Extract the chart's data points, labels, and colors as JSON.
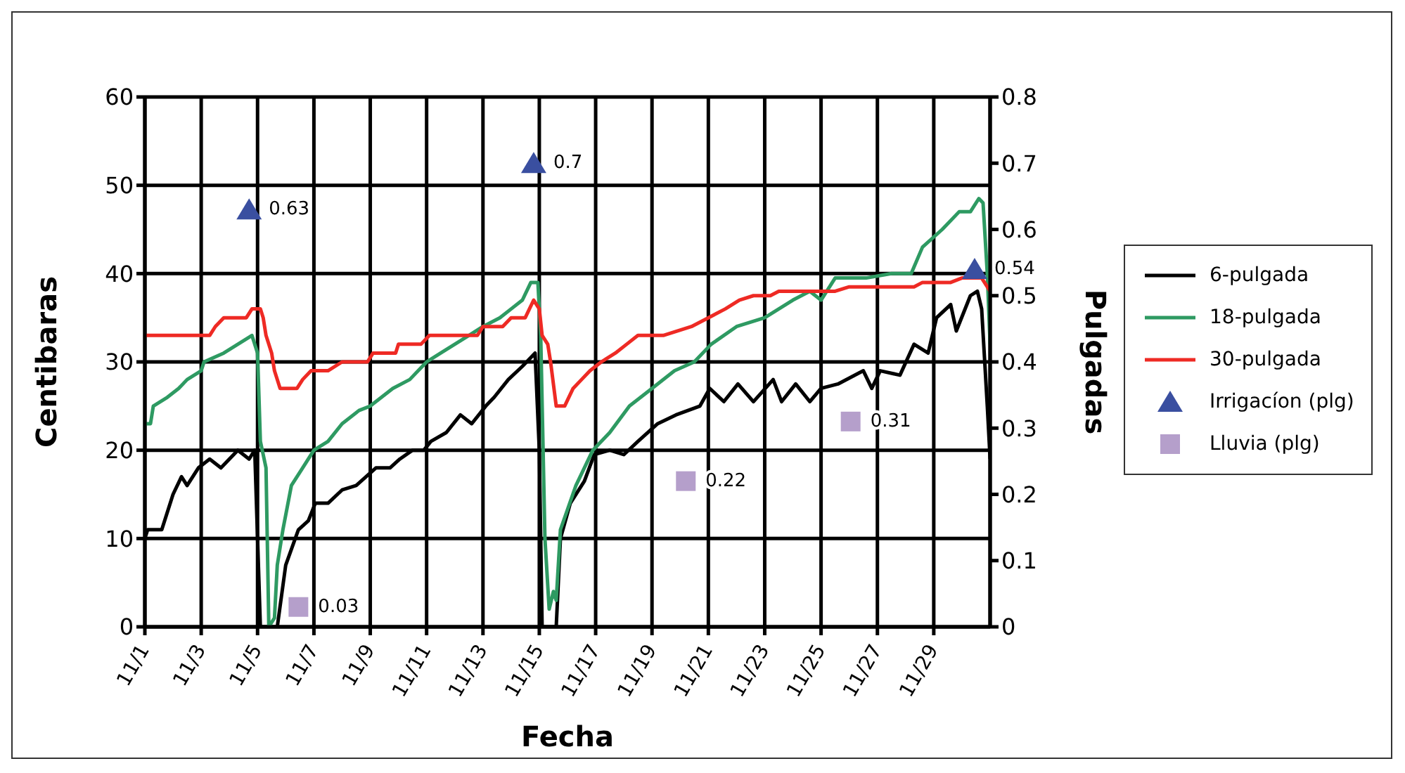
{
  "chart_data": {
    "type": "line",
    "xlabel": "Fecha",
    "ylabel": "Centibaras",
    "y2label": "Pulgadas",
    "xlim": [
      "--11-01",
      "--12-01"
    ],
    "xticks": [
      {
        "value": "--11-01",
        "label": "11/1"
      },
      {
        "value": "--11-03",
        "label": "11/3"
      },
      {
        "value": "--11-05",
        "label": "11/5"
      },
      {
        "value": "--11-07",
        "label": "11/7"
      },
      {
        "value": "--11-09",
        "label": "11/9"
      },
      {
        "value": "--11-11",
        "label": "11/11"
      },
      {
        "value": "--11-13",
        "label": "11/13"
      },
      {
        "value": "--11-15",
        "label": "11/15"
      },
      {
        "value": "--11-17",
        "label": "11/17"
      },
      {
        "value": "--11-19",
        "label": "11/19"
      },
      {
        "value": "--11-21",
        "label": "11/21"
      },
      {
        "value": "--11-23",
        "label": "11/23"
      },
      {
        "value": "--11-25",
        "label": "11/25"
      },
      {
        "value": "--11-27",
        "label": "11/27"
      },
      {
        "value": "--11-29",
        "label": "11/29"
      }
    ],
    "ylim": [
      0,
      60
    ],
    "yticks": [
      0,
      10,
      20,
      30,
      40,
      50,
      60
    ],
    "y2lim": [
      0,
      0.8
    ],
    "y2ticks": [
      0,
      0.1,
      0.2,
      0.3,
      0.4,
      0.5,
      0.6,
      0.7,
      0.8
    ],
    "grid": true,
    "legend": "right",
    "series": [
      {
        "name": "6-pulgada",
        "color": "#000000",
        "x": [
          "--11-01",
          "--11-01T02:24",
          "--11-01T14:24",
          "--11-02",
          "--11-02T07:12",
          "--11-02T12:00",
          "--11-02T21:36",
          "--11-03T07:12",
          "--11-03T16:48",
          "--11-04",
          "--11-04T07:12",
          "--11-04T16:48",
          "--11-04T21:36",
          "--11-05T02:24",
          "--11-05T04:48",
          "--11-05T16:48",
          "--11-06",
          "--11-06T10:48",
          "--11-06T19:12",
          "--11-07T01:12",
          "--11-07T12:00",
          "--11-08",
          "--11-08T12:00",
          "--11-08T20:24",
          "--11-09T04:48",
          "--11-09T16:48",
          "--11-10T01:12",
          "--11-10T12:00",
          "--11-10T21:36",
          "--11-11T03:36",
          "--11-11T16:48",
          "--11-12T04:48",
          "--11-12T14:24",
          "--11-13T02:24",
          "--11-13T09:36",
          "--11-13T21:36",
          "--11-14T09:36",
          "--11-14T16:48",
          "--11-14T20:24",
          "--11-15",
          "--11-15T02:24",
          "--11-15T14:24",
          "--11-15T18:00",
          "--11-16T02:24",
          "--11-16T14:24",
          "--11-16T22:48",
          "--11-17T12:00",
          "--11-18",
          "--11-18T12:00",
          "--11-19T04:48",
          "--11-19T20:24",
          "--11-20T16:48",
          "--11-21T01:12",
          "--11-21T13:12",
          "--11-22T01:12",
          "--11-22T14:24",
          "--11-23T07:12",
          "--11-23T14:24",
          "--11-24T02:24",
          "--11-24T14:24",
          "--11-25",
          "--11-25T14:24",
          "--11-26T12:00",
          "--11-26T19:12",
          "--11-27T02:24",
          "--11-27T19:12",
          "--11-28T07:12",
          "--11-28T19:12",
          "--11-29T02:24",
          "--11-29T14:24",
          "--11-29T19:12",
          "--11-30T07:12",
          "--11-30T13:12",
          "--11-30T16:48",
          "--11-30T21:36",
          "--12-01"
        ],
        "values": [
          10,
          11,
          11,
          15,
          17,
          16,
          18,
          19,
          18,
          19,
          20,
          19,
          20,
          0,
          0,
          0,
          7,
          11,
          12,
          14,
          14,
          15.5,
          16,
          17,
          18,
          18,
          19,
          20,
          20,
          21,
          22,
          24,
          23,
          25,
          26,
          28,
          29.5,
          30.5,
          31,
          20,
          0,
          0,
          10,
          14,
          16.5,
          19.5,
          20,
          19.5,
          21,
          23,
          24,
          25,
          27,
          25.5,
          27.5,
          25.5,
          28,
          25.5,
          27.5,
          25.5,
          27,
          27.5,
          29,
          27,
          29,
          28.5,
          32,
          31,
          35,
          36.5,
          33.5,
          37.5,
          38,
          36,
          25,
          19
        ]
      },
      {
        "name": "18-pulgada",
        "color": "#2e9a62",
        "x": [
          "--11-01",
          "--11-01T04:48",
          "--11-01T07:12",
          "--11-01T19:12",
          "--11-02T04:48",
          "--11-02T12:00",
          "--11-03",
          "--11-03T02:24",
          "--11-03T19:12",
          "--11-04T07:12",
          "--11-04T19:12",
          "--11-05",
          "--11-05T02:24",
          "--11-05T07:12",
          "--11-05T09:36",
          "--11-05T14:24",
          "--11-05T16:48",
          "--11-05T21:36",
          "--11-06T04:48",
          "--11-06T14:24",
          "--11-07",
          "--11-07T12:00",
          "--11-08",
          "--11-08T14:24",
          "--11-09",
          "--11-09T19:12",
          "--11-10T09:36",
          "--11-11",
          "--11-11T12:00",
          "--11-12",
          "--11-12T12:00",
          "--11-13",
          "--11-13T14:24",
          "--11-14",
          "--11-14T09:36",
          "--11-14T16:48",
          "--11-14T22:48",
          "--11-15T01:12",
          "--11-15T04:48",
          "--11-15T08:24",
          "--11-15T12:00",
          "--11-15T14:24",
          "--11-15T18:00",
          "--11-16T07:12",
          "--11-16T21:36",
          "--11-17T12:00",
          "--11-18T04:48",
          "--11-19",
          "--11-19T19:12",
          "--11-20T12:00",
          "--11-21T02:24",
          "--11-22",
          "--11-23",
          "--11-24",
          "--11-24T14:24",
          "--11-25",
          "--11-25T12:00",
          "--11-26T14:24",
          "--11-27T12:00",
          "--11-28T04:48",
          "--11-28T14:24",
          "--11-29T07:12",
          "--11-29T21:36",
          "--11-30T07:12",
          "--11-30T14:24",
          "--11-30T18:00",
          "--11-30T21:36",
          "--12-01"
        ],
        "values": [
          23,
          23,
          25,
          26,
          27,
          28,
          29,
          30,
          31,
          32,
          33,
          31,
          21,
          18,
          0,
          1,
          7,
          11,
          16,
          18,
          20,
          21,
          23,
          24.5,
          25,
          27,
          28,
          30,
          31,
          32,
          33,
          34,
          35,
          36,
          37,
          39,
          39,
          33,
          10,
          2,
          4,
          3,
          11,
          16,
          20,
          22,
          25,
          27,
          29,
          30,
          32,
          34,
          35,
          37,
          38,
          37,
          39.5,
          39.5,
          40,
          40,
          43,
          45,
          47,
          47,
          48.5,
          48,
          40,
          32
        ]
      },
      {
        "name": "30-pulgada",
        "color": "#ee2a24",
        "x": [
          "--11-01",
          "--11-03T07:12",
          "--11-03T12:00",
          "--11-03T19:12",
          "--11-04T14:24",
          "--11-04T19:12",
          "--11-05T02:24",
          "--11-05T04:48",
          "--11-05T07:12",
          "--11-05T12:00",
          "--11-05T14:24",
          "--11-05T19:12",
          "--11-06T09:36",
          "--11-06T14:24",
          "--11-06T21:36",
          "--11-07T12:00",
          "--11-08",
          "--11-08T21:36",
          "--11-09T02:24",
          "--11-09T21:36",
          "--11-10",
          "--11-10T19:12",
          "--11-11T02:24",
          "--11-12T19:12",
          "--11-13",
          "--11-13T16:48",
          "--11-14",
          "--11-14T12:00",
          "--11-14T19:12",
          "--11-15",
          "--11-15T02:24",
          "--11-15T07:12",
          "--11-15T09:36",
          "--11-15T14:24",
          "--11-15T21:36",
          "--11-16T04:48",
          "--11-16T12:00",
          "--11-16T19:12",
          "--11-17T04:48",
          "--11-17T16:48",
          "--11-18T02:24",
          "--11-18T12:00",
          "--11-19T09:36",
          "--11-20T09:36",
          "--11-21",
          "--11-21T14:24",
          "--11-22T02:24",
          "--11-22T14:24",
          "--11-23T04:48",
          "--11-23T12:00",
          "--11-25T12:00",
          "--11-26",
          "--11-28T07:12",
          "--11-28T14:24",
          "--11-29T14:24",
          "--11-30",
          "--11-30T16:48",
          "--12-01"
        ],
        "values": [
          33,
          33,
          34,
          35,
          35,
          36,
          36,
          35,
          33,
          31,
          29,
          27,
          27,
          28,
          29,
          29,
          30,
          30,
          31,
          31,
          32,
          32,
          33,
          33,
          34,
          34,
          35,
          35,
          37,
          36,
          33,
          32,
          30,
          25,
          25,
          27,
          28,
          29,
          30,
          31,
          32,
          33,
          33,
          34,
          35,
          36,
          37,
          37.5,
          37.5,
          38,
          38,
          38.5,
          38.5,
          39,
          39,
          39.5,
          39.5,
          38
        ]
      },
      {
        "name": "Irrigacíon (plg)",
        "type": "scatter",
        "axis": "y2",
        "marker": "triangle",
        "color": "#3a4fa0",
        "data_labels": true,
        "x": [
          "--11-04T16:48",
          "--11-14T19:12",
          "--11-30T10:48"
        ],
        "values": [
          0.63,
          0.7,
          0.54
        ]
      },
      {
        "name": "Lluvia (plg)",
        "type": "scatter",
        "axis": "y2",
        "marker": "square",
        "color": "#b59fcb",
        "data_labels": true,
        "x": [
          "--11-06T10:48",
          "--11-20T04:48",
          "--11-26T01:12"
        ],
        "values": [
          0.03,
          0.22,
          0.31
        ]
      }
    ]
  }
}
